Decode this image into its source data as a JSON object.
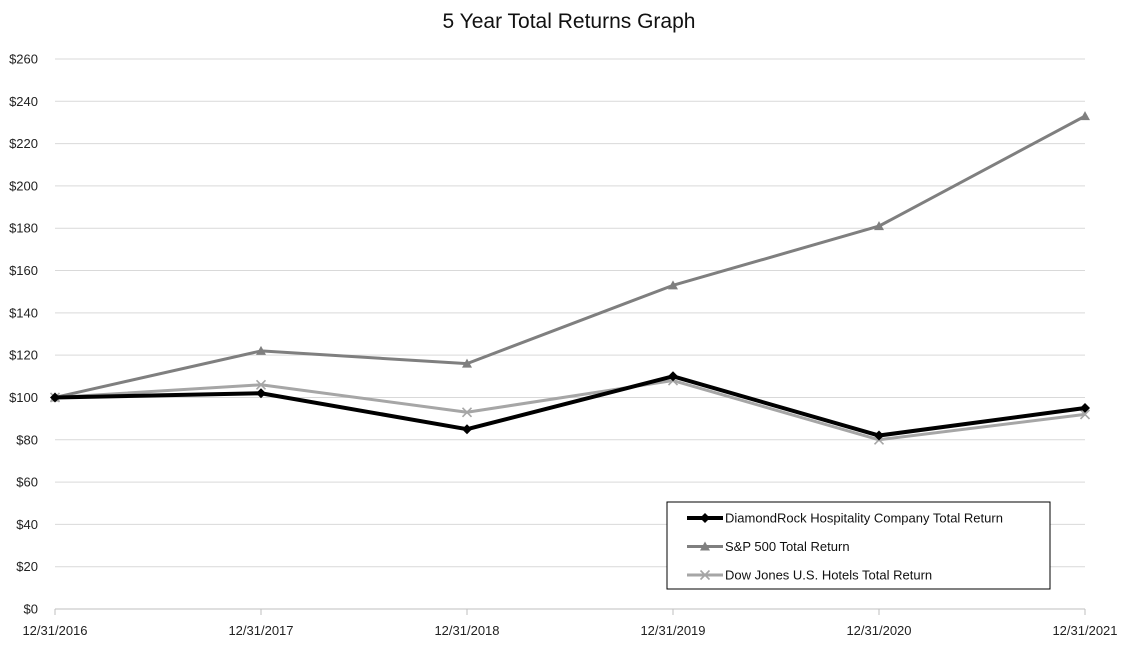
{
  "chart_data": {
    "type": "line",
    "title": "5 Year Total Returns Graph",
    "xlabel": "",
    "ylabel": "",
    "categories": [
      "12/31/2016",
      "12/31/2017",
      "12/31/2018",
      "12/31/2019",
      "12/31/2020",
      "12/31/2021"
    ],
    "yticks": [
      "$0",
      "$20",
      "$40",
      "$60",
      "$80",
      "$100",
      "$120",
      "$140",
      "$160",
      "$180",
      "$200",
      "$220",
      "$240",
      "$260"
    ],
    "ylim": [
      0,
      260
    ],
    "grid": true,
    "legend_position": "bottom-right",
    "series": [
      {
        "name": "DiamondRock Hospitality Company Total Return",
        "values": [
          100,
          102,
          85,
          110,
          82,
          95
        ],
        "color": "#000000",
        "marker": "diamond",
        "line_width": "thick"
      },
      {
        "name": "S&P 500 Total Return",
        "values": [
          100,
          122,
          116,
          153,
          181,
          233
        ],
        "color": "#7f7f7f",
        "marker": "triangle",
        "line_width": "medium"
      },
      {
        "name": "Dow Jones U.S. Hotels Total Return",
        "values": [
          100,
          106,
          93,
          108,
          80,
          92
        ],
        "color": "#a6a6a6",
        "marker": "x",
        "line_width": "medium"
      }
    ]
  }
}
